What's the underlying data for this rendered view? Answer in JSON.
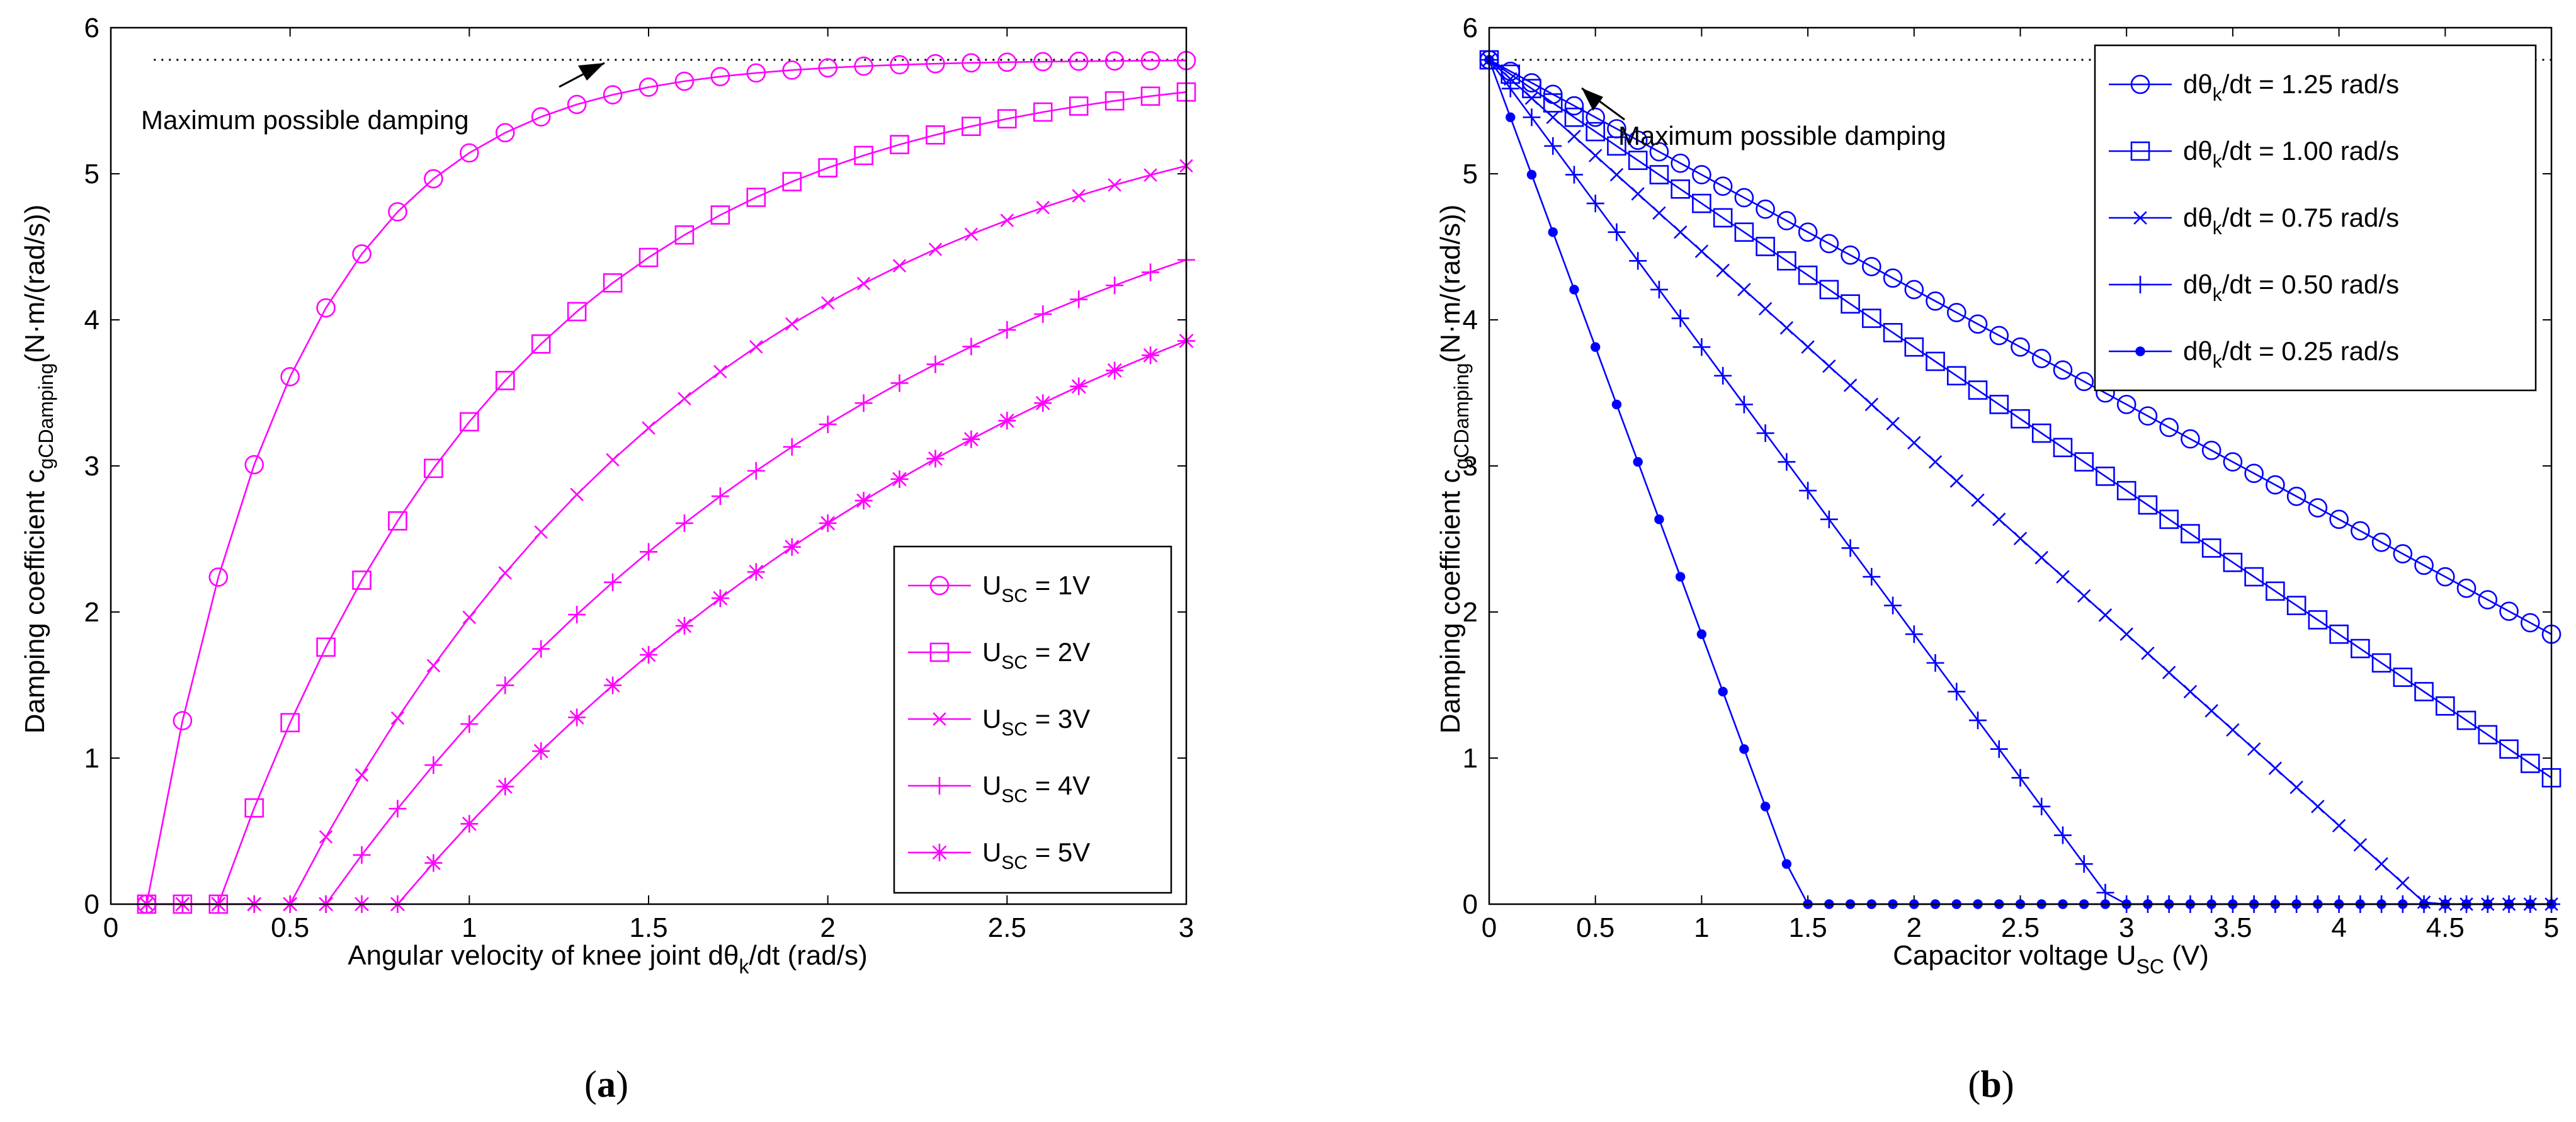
{
  "chart_data": [
    {
      "type": "line",
      "panel_label_open": "(",
      "panel_label": "a",
      "panel_label_close": ")",
      "xlabel_main": "Angular velocity of knee joint dθ",
      "xlabel_sub": "k",
      "xlabel_tail": "/dt (rad/s)",
      "ylabel_main": "Damping coefficient c",
      "ylabel_sub": "gCDamping",
      "ylabel_tail": "(N·m/(rad/s))",
      "xlim": [
        0,
        3
      ],
      "ylim": [
        0,
        6
      ],
      "xticks": [
        0,
        0.5,
        1,
        1.5,
        2,
        2.5,
        3
      ],
      "yticks": [
        0,
        1,
        2,
        3,
        4,
        5,
        6
      ],
      "color": "#ff00ff",
      "max_damping": 5.78,
      "annotation": "Maximum possible damping",
      "legend_position": "bottom-right",
      "series": [
        {
          "name_main": "U",
          "name_sub": "SC",
          "name_tail": " = 1V",
          "marker": "circle",
          "x0": 0.1,
          "k": 2.45,
          "xmin": 0.1,
          "xmax": 3,
          "step": 0.1,
          "marker_step": 0.1
        },
        {
          "name_main": "U",
          "name_sub": "SC",
          "name_tail": " = 2V",
          "marker": "square",
          "x0": 0.3,
          "k": 1.21,
          "xmin": 0.1,
          "xmax": 3,
          "step": 0.1,
          "marker_step": 0.1
        },
        {
          "name_main": "U",
          "name_sub": "SC",
          "name_tail": " = 3V",
          "marker": "x",
          "x0": 0.5,
          "k": 0.83,
          "xmin": 0.1,
          "xmax": 3,
          "step": 0.1,
          "marker_step": 0.1
        },
        {
          "name_main": "U",
          "name_sub": "SC",
          "name_tail": " = 4V",
          "marker": "plus",
          "x0": 0.6,
          "k": 0.6,
          "xmin": 0.1,
          "xmax": 3,
          "step": 0.1,
          "marker_step": 0.1
        },
        {
          "name_main": "U",
          "name_sub": "SC",
          "name_tail": " = 5V",
          "marker": "star",
          "x0": 0.8,
          "k": 0.5,
          "xmin": 0.1,
          "xmax": 3,
          "step": 0.1,
          "marker_step": 0.1
        }
      ]
    },
    {
      "type": "line",
      "panel_label_open": "(",
      "panel_label": "b",
      "panel_label_close": ")",
      "xlabel_main": "Capacitor voltage U",
      "xlabel_sub": "SC",
      "xlabel_tail": " (V)",
      "ylabel_main": "Damping coefficient c",
      "ylabel_sub": "gCDamping",
      "ylabel_tail": "(N·m/(rad/s))",
      "xlim": [
        0,
        5
      ],
      "ylim": [
        0,
        6
      ],
      "xticks": [
        0,
        0.5,
        1,
        1.5,
        2,
        2.5,
        3,
        3.5,
        4,
        4.5,
        5
      ],
      "yticks": [
        0,
        1,
        2,
        3,
        4,
        5,
        6
      ],
      "color": "#0000ff",
      "max_damping": 5.78,
      "annotation": "Maximum possible damping",
      "legend_position": "top-right",
      "series": [
        {
          "name_main": "dθ",
          "name_sub": "k",
          "name_tail": "/dt = 1.25 rad/s",
          "marker": "circle",
          "y0": 5.78,
          "x_zero": 7.35,
          "xmax": 5,
          "step": 0.1,
          "marker_step": 0.1
        },
        {
          "name_main": "dθ",
          "name_sub": "k",
          "name_tail": "/dt = 1.00 rad/s",
          "marker": "square",
          "y0": 5.78,
          "x_zero": 5.88,
          "xmax": 5,
          "step": 0.1,
          "marker_step": 0.1
        },
        {
          "name_main": "dθ",
          "name_sub": "k",
          "name_tail": "/dt = 0.75 rad/s",
          "marker": "x",
          "y0": 5.78,
          "x_zero": 4.41,
          "xmax": 5,
          "step": 0.1,
          "marker_step": 0.1
        },
        {
          "name_main": "dθ",
          "name_sub": "k",
          "name_tail": "/dt = 0.50 rad/s",
          "marker": "plus",
          "y0": 5.78,
          "x_zero": 2.94,
          "xmax": 5,
          "step": 0.1,
          "marker_step": 0.1
        },
        {
          "name_main": "dθ",
          "name_sub": "k",
          "name_tail": "/dt = 0.25 rad/s",
          "marker": "dot",
          "y0": 5.78,
          "x_zero": 1.47,
          "xmax": 5,
          "step": 0.1,
          "marker_step": 0.1
        }
      ]
    }
  ]
}
